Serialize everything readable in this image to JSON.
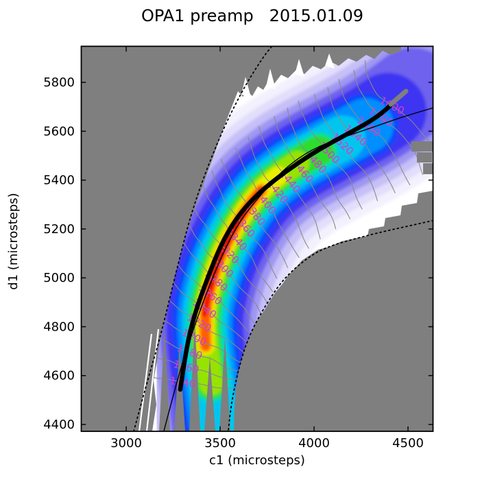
{
  "title": "OPA1 preamp   2015.01.09",
  "chart_data": {
    "type": "contour",
    "xlabel": "c1 (microsteps)",
    "ylabel": "d1 (microsteps)",
    "xlim": [
      2759,
      4635
    ],
    "ylim": [
      4372,
      5949
    ],
    "x_ticks": [
      3000,
      3500,
      4000,
      4500
    ],
    "y_ticks": [
      4400,
      4600,
      4800,
      5000,
      5200,
      5400,
      5600,
      5800
    ],
    "grid": false,
    "masked_color": "#7f7f7f",
    "contour_line_color": "#8a8a8a",
    "contour_label_color": "#d23bd2",
    "contour_levels": [
      1140,
      1160,
      1180,
      1200,
      1220,
      1240,
      1260,
      1280,
      1300,
      1320,
      1340,
      1360,
      1380,
      1400,
      1420,
      1440,
      1460,
      1480,
      1500,
      1520,
      1540,
      1560,
      1580,
      1600
    ],
    "colormap_outer_to_core": [
      "#f3f1fd",
      "#e2defb",
      "#c6c0f7",
      "#9f97f2",
      "#6e62ee",
      "#3c35f2",
      "#0b46fb",
      "#008fff",
      "#00c6ee",
      "#00dfa8",
      "#2edc2e",
      "#96e300",
      "#eaee00",
      "#ffb400",
      "#ff5e00",
      "#f21300",
      "#cf0000"
    ],
    "band_center": [
      [
        3481,
        4403
      ],
      [
        3452,
        4566
      ],
      [
        3423,
        4721
      ],
      [
        3416,
        4853
      ],
      [
        3449,
        4968
      ],
      [
        3492,
        5072
      ],
      [
        3558,
        5179
      ],
      [
        3635,
        5280
      ],
      [
        3719,
        5359
      ],
      [
        3810,
        5418
      ],
      [
        3912,
        5471
      ],
      [
        4029,
        5521
      ],
      [
        4153,
        5572
      ],
      [
        4277,
        5623
      ],
      [
        4394,
        5682
      ],
      [
        4525,
        5758
      ],
      [
        4682,
        5859
      ]
    ],
    "measured_curve": {
      "color": "#000000",
      "points": [
        [
          3288,
          4543
        ],
        [
          3321,
          4721
        ],
        [
          3368,
          4861
        ],
        [
          3430,
          4993
        ],
        [
          3503,
          5134
        ],
        [
          3587,
          5246
        ],
        [
          3686,
          5333
        ],
        [
          3795,
          5404
        ],
        [
          3916,
          5471
        ],
        [
          4043,
          5533
        ],
        [
          4171,
          5586
        ],
        [
          4299,
          5640
        ],
        [
          4379,
          5685
        ],
        [
          4438,
          5730
        ]
      ]
    },
    "fit_curve": {
      "color": "#000000",
      "points": [
        [
          3193,
          4350
        ],
        [
          3270,
          4580
        ],
        [
          3343,
          4757
        ],
        [
          3423,
          4931
        ],
        [
          3514,
          5100
        ],
        [
          3606,
          5235
        ],
        [
          3715,
          5339
        ],
        [
          3843,
          5449
        ],
        [
          3989,
          5527
        ],
        [
          4142,
          5572
        ],
        [
          4299,
          5612
        ],
        [
          4463,
          5657
        ],
        [
          4635,
          5696
        ]
      ]
    },
    "boundary_left_dotted": [
      [
        3040,
        4372
      ],
      [
        3113,
        4580
      ],
      [
        3179,
        4749
      ],
      [
        3270,
        5038
      ],
      [
        3357,
        5297
      ],
      [
        3489,
        5564
      ],
      [
        3613,
        5761
      ],
      [
        3726,
        5901
      ],
      [
        3777,
        5949
      ]
    ],
    "boundary_right_dotted": [
      [
        4635,
        5235
      ],
      [
        4503,
        5212
      ],
      [
        4372,
        5190
      ],
      [
        4226,
        5162
      ],
      [
        4073,
        5128
      ],
      [
        3971,
        5086
      ],
      [
        3843,
        5002
      ],
      [
        3744,
        4892
      ],
      [
        3649,
        4757
      ],
      [
        3591,
        4608
      ],
      [
        3558,
        4476
      ],
      [
        3543,
        4372
      ]
    ]
  }
}
